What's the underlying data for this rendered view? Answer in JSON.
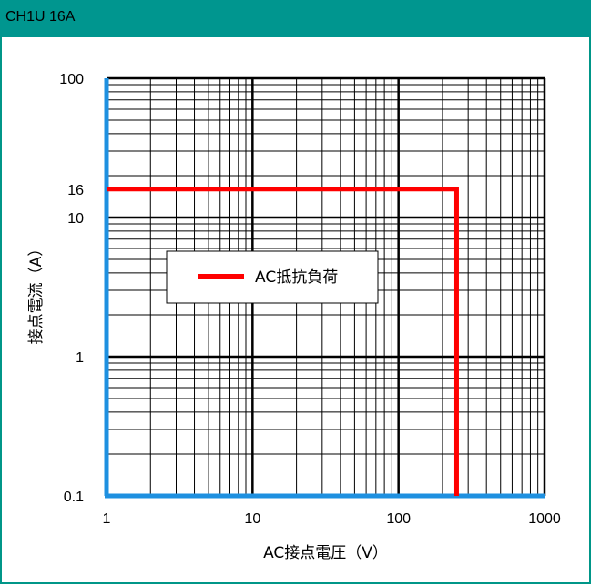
{
  "header": {
    "title": "CH1U 16A"
  },
  "colors": {
    "header_bg": "#00968f",
    "axis_blue": "#1e90e0",
    "series_red": "#ff0000",
    "grid": "#000000"
  },
  "chart_data": {
    "type": "line",
    "title": "CH1U 16A",
    "xlabel": "AC接点電圧（V）",
    "ylabel": "接点電流（A）",
    "xscale": "log",
    "yscale": "log",
    "xlim": [
      1,
      1000
    ],
    "ylim": [
      0.1,
      100
    ],
    "xticks": [
      1,
      10,
      100,
      1000
    ],
    "xtick_labels": [
      "1",
      "10",
      "100",
      "1000"
    ],
    "yticks": [
      0.1,
      1,
      10,
      16,
      100
    ],
    "ytick_labels": [
      "0.1",
      "1",
      "10",
      "16",
      "100"
    ],
    "grid": true,
    "legend_position": "center-left",
    "series": [
      {
        "name": "AC抵抗負荷",
        "color": "#ff0000",
        "x": [
          1,
          250,
          250
        ],
        "y": [
          16,
          16,
          0.1
        ]
      }
    ]
  }
}
